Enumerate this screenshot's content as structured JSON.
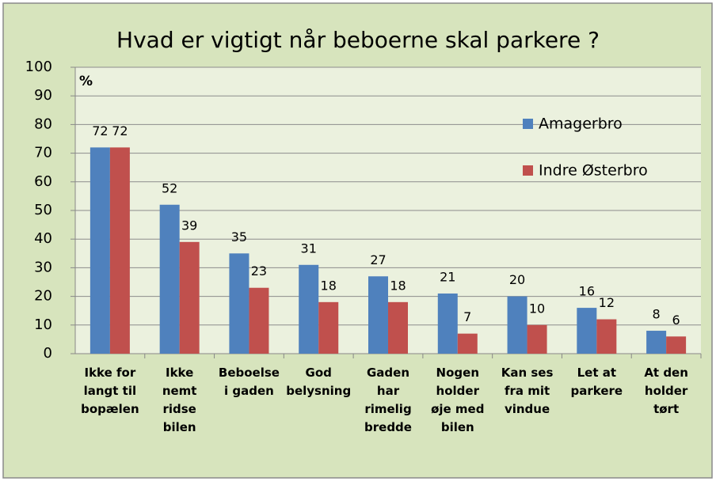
{
  "chart_data": {
    "type": "bar",
    "title": "Hvad er vigtigt når beboerne skal parkere ?",
    "y_unit_label": "%",
    "categories": [
      "Ikke for\nlangt til\nbopælen",
      "Ikke\nnemt\nridse\nbilen",
      "Beboelse\ni gaden",
      "God\nbelysning",
      "Gaden\nhar\nrimelig\nbredde",
      "Nogen\nholder\nøje med\nbilen",
      "Kan ses\nfra mit\nvindue",
      "Let at\nparkere",
      "At den\nholder\ntørt"
    ],
    "series": [
      {
        "name": "Amagerbro",
        "color": "#4f81bd",
        "values": [
          72,
          52,
          35,
          31,
          27,
          21,
          20,
          16,
          8
        ]
      },
      {
        "name": "Indre Østerbro",
        "color": "#c0504d",
        "values": [
          72,
          39,
          23,
          18,
          18,
          7,
          10,
          12,
          6
        ]
      }
    ],
    "ylim": [
      0,
      100
    ],
    "yticks": [
      0,
      10,
      20,
      30,
      40,
      50,
      60,
      70,
      80,
      90,
      100
    ],
    "grid": true,
    "legend": "right"
  }
}
